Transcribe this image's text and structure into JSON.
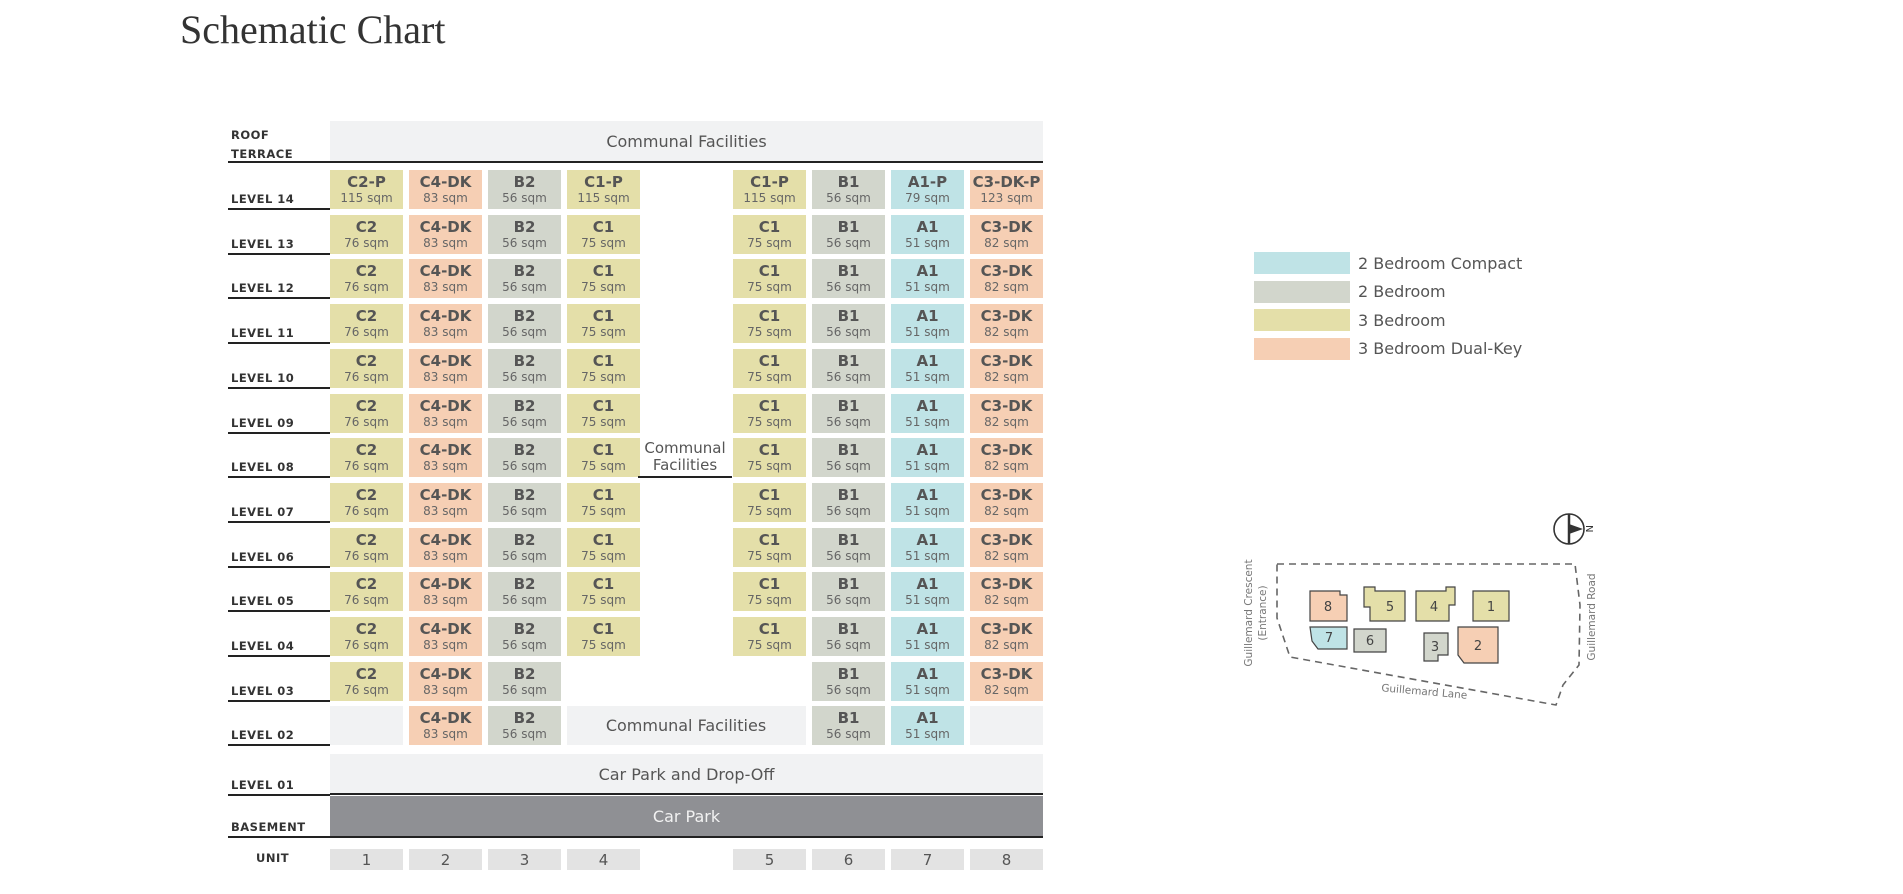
{
  "title": "Schematic Chart",
  "colors": {
    "2 Bedroom Compact": "#bfe3e6",
    "2 Bedroom": "#d2d6cc",
    "3 Bedroom": "#e4dfa9",
    "3 Bedroom Dual-Key": "#f6cfb4",
    "facility_bg": "#f1f2f3",
    "carpark_dark": "#8f9094",
    "unit_bg": "#e3e3e3"
  },
  "legend": [
    {
      "label": "2 Bedroom Compact",
      "color": "#bfe3e6"
    },
    {
      "label": "2 Bedroom",
      "color": "#d2d6cc"
    },
    {
      "label": "3 Bedroom",
      "color": "#e4dfa9"
    },
    {
      "label": "3 Bedroom Dual-Key",
      "color": "#f6cfb4"
    }
  ],
  "levels": {
    "roof": "ROOF\nTERRACE",
    "rows": [
      "LEVEL 14",
      "LEVEL 13",
      "LEVEL 12",
      "LEVEL 11",
      "LEVEL 10",
      "LEVEL 09",
      "LEVEL 08",
      "LEVEL 07",
      "LEVEL 06",
      "LEVEL 05",
      "LEVEL 04",
      "LEVEL 03",
      "LEVEL 02"
    ],
    "level01": "LEVEL 01",
    "basement": "BASEMENT",
    "unit": "UNIT"
  },
  "facilities": {
    "roof": "Communal Facilities",
    "mid": "Communal\nFacilities",
    "level02": "Communal Facilities",
    "level01": "Car Park and Drop-Off",
    "basement": "Car Park"
  },
  "units": [
    "1",
    "2",
    "3",
    "4",
    "5",
    "6",
    "7",
    "8"
  ],
  "unit_types": {
    "C2-P": {
      "area": "115 sqm",
      "type": "3 Bedroom"
    },
    "C4-DK": {
      "area": "83 sqm",
      "type": "3 Bedroom Dual-Key"
    },
    "B2": {
      "area": "56 sqm",
      "type": "2 Bedroom"
    },
    "C1-P": {
      "area": "115 sqm",
      "type": "3 Bedroom"
    },
    "B1": {
      "area": "56 sqm",
      "type": "2 Bedroom"
    },
    "A1-P": {
      "area": "79 sqm",
      "type": "2 Bedroom Compact"
    },
    "C3-DK-P": {
      "area": "123 sqm",
      "type": "3 Bedroom Dual-Key"
    },
    "C2": {
      "area": "76 sqm",
      "type": "3 Bedroom"
    },
    "C1": {
      "area": "75 sqm",
      "type": "3 Bedroom"
    },
    "A1": {
      "area": "51 sqm",
      "type": "2 Bedroom Compact"
    },
    "C3-DK": {
      "area": "82 sqm",
      "type": "3 Bedroom Dual-Key"
    }
  },
  "grid": [
    [
      "C2-P",
      "C4-DK",
      "B2",
      "C1-P",
      "C1-P",
      "B1",
      "A1-P",
      "C3-DK-P"
    ],
    [
      "C2",
      "C4-DK",
      "B2",
      "C1",
      "C1",
      "B1",
      "A1",
      "C3-DK"
    ],
    [
      "C2",
      "C4-DK",
      "B2",
      "C1",
      "C1",
      "B1",
      "A1",
      "C3-DK"
    ],
    [
      "C2",
      "C4-DK",
      "B2",
      "C1",
      "C1",
      "B1",
      "A1",
      "C3-DK"
    ],
    [
      "C2",
      "C4-DK",
      "B2",
      "C1",
      "C1",
      "B1",
      "A1",
      "C3-DK"
    ],
    [
      "C2",
      "C4-DK",
      "B2",
      "C1",
      "C1",
      "B1",
      "A1",
      "C3-DK"
    ],
    [
      "C2",
      "C4-DK",
      "B2",
      "C1",
      "C1",
      "B1",
      "A1",
      "C3-DK"
    ],
    [
      "C2",
      "C4-DK",
      "B2",
      "C1",
      "C1",
      "B1",
      "A1",
      "C3-DK"
    ],
    [
      "C2",
      "C4-DK",
      "B2",
      "C1",
      "C1",
      "B1",
      "A1",
      "C3-DK"
    ],
    [
      "C2",
      "C4-DK",
      "B2",
      "C1",
      "C1",
      "B1",
      "A1",
      "C3-DK"
    ],
    [
      "C2",
      "C4-DK",
      "B2",
      "C1",
      "C1",
      "B1",
      "A1",
      "C3-DK"
    ],
    [
      "C2",
      "C4-DK",
      "B2",
      "",
      "",
      "B1",
      "A1",
      "C3-DK"
    ],
    [
      "",
      "C4-DK",
      "B2",
      "",
      "",
      "B1",
      "A1",
      ""
    ]
  ],
  "siteplan": {
    "roads": {
      "west": "Guillemard Crescent",
      "west_sub": "(Entrance)",
      "east": "Guillemard Road",
      "south": "Guillemard Lane"
    },
    "north": "N",
    "blocks": [
      {
        "label": "8",
        "type": "3 Bedroom Dual-Key"
      },
      {
        "label": "5",
        "type": "3 Bedroom"
      },
      {
        "label": "4",
        "type": "3 Bedroom"
      },
      {
        "label": "1",
        "type": "3 Bedroom"
      },
      {
        "label": "7",
        "type": "2 Bedroom Compact"
      },
      {
        "label": "6",
        "type": "2 Bedroom"
      },
      {
        "label": "3",
        "type": "2 Bedroom"
      },
      {
        "label": "2",
        "type": "3 Bedroom Dual-Key"
      }
    ]
  }
}
